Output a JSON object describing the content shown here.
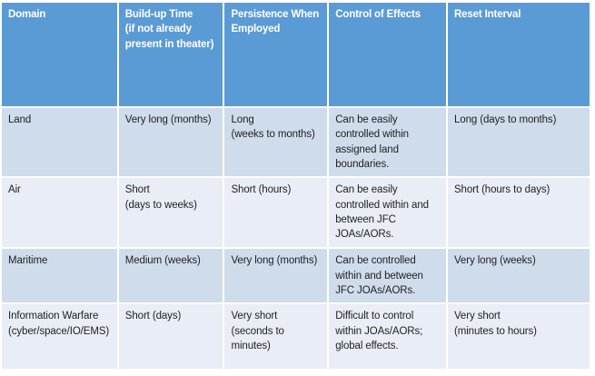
{
  "table": {
    "headers": [
      "Domain",
      "Build-up Time\n(if not already\npresent in theater)",
      "Persistence When\nEmployed",
      "Control of Effects",
      "Reset Interval"
    ],
    "rows": [
      {
        "cells": [
          "Land",
          "Very long (months)",
          "Long\n(weeks to months)",
          "Can be easily controlled within assigned land boundaries.",
          "Long (days to months)"
        ]
      },
      {
        "cells": [
          "Air",
          "Short\n(days to weeks)",
          "Short (hours)",
          "Can be easily controlled within and between JFC JOAs/AORs.",
          "Short (hours to days)"
        ]
      },
      {
        "cells": [
          "Maritime",
          "Medium (weeks)",
          "Very long (months)",
          "Can be controlled within and between JFC JOAs/AORs.",
          "Very long (weeks)"
        ]
      },
      {
        "cells": [
          "Information Warfare\n(cyber/space/IO/EMS)",
          "Short (days)",
          "Very short\n(seconds to minutes)",
          "Difficult to control within JOAs/AORs; global effects.",
          "Very short\n(minutes to hours)"
        ]
      }
    ]
  },
  "colors": {
    "header_bg": "#5b9bd5",
    "header_text": "#ffffff",
    "row_band_dark": "#cfdcec",
    "row_band_light": "#e9edf6",
    "body_text": "#1f1f1f",
    "grid_gap": "#ffffff",
    "page_bg": "#ffffff"
  }
}
